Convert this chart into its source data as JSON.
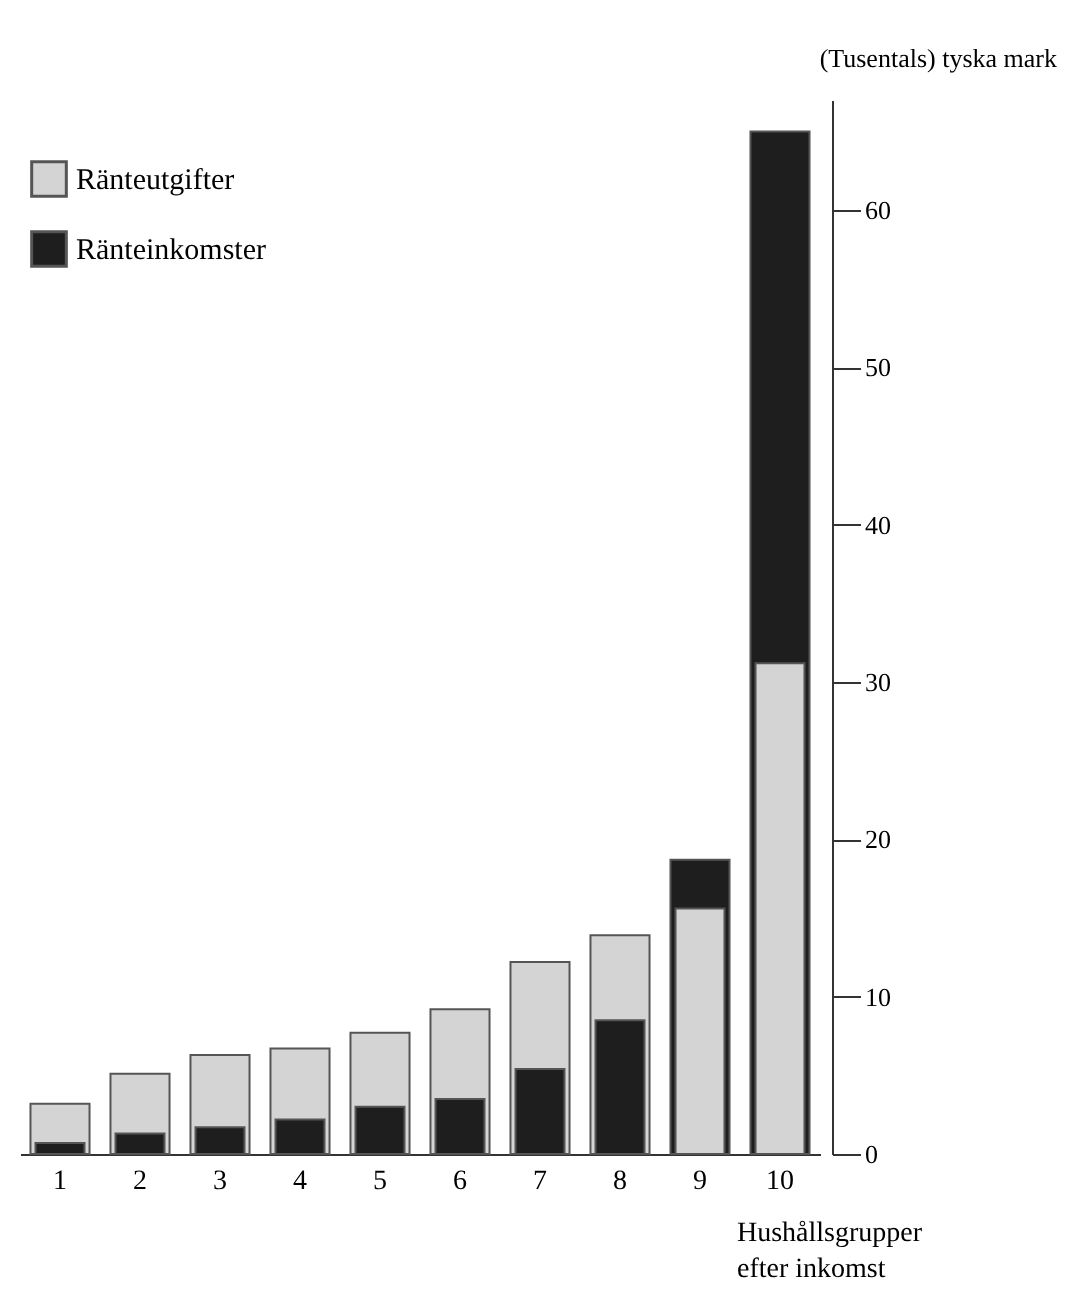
{
  "chart_data": {
    "type": "bar",
    "xlabel": "Hushållsgrupper efter inkomst",
    "ylabel": "(Tusentals) tyska mark",
    "categories": [
      "1",
      "2",
      "3",
      "4",
      "5",
      "6",
      "7",
      "8",
      "9",
      "10"
    ],
    "series": [
      {
        "name": "Ränteutgifter",
        "color": "#d4d4d4",
        "values": [
          3.2,
          5.1,
          6.3,
          6.7,
          7.7,
          9.2,
          12.2,
          13.9,
          15.6,
          31.2
        ]
      },
      {
        "name": "Ränteinkomster",
        "color": "#1e1e1e",
        "values": [
          0.7,
          1.3,
          1.7,
          2.2,
          3.0,
          3.5,
          5.4,
          8.5,
          18.7,
          65.0
        ]
      }
    ],
    "ylim": [
      0,
      67
    ],
    "yticks": [
      0,
      10,
      20,
      30,
      40,
      50,
      60
    ],
    "grid": false,
    "legend": "top left"
  }
}
